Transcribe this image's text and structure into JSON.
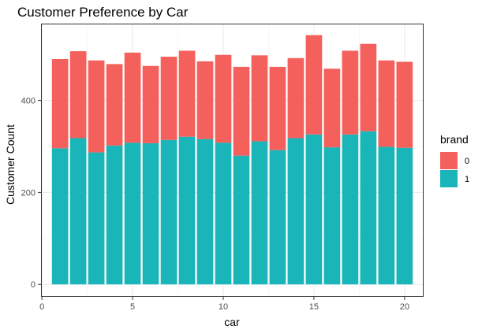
{
  "chart_data": {
    "type": "bar",
    "stacked": true,
    "title": "Customer Preference by Car",
    "xlabel": "car",
    "ylabel": "Customer Count",
    "x": [
      1,
      2,
      3,
      4,
      5,
      6,
      7,
      8,
      9,
      10,
      11,
      12,
      13,
      14,
      15,
      16,
      17,
      18,
      19,
      20
    ],
    "xlim": [
      -0.05,
      21.05
    ],
    "ylim": [
      -27,
      567
    ],
    "xticks": [
      0,
      5,
      10,
      15,
      20
    ],
    "yticks": [
      0,
      200,
      400
    ],
    "grid": true,
    "legend_title": "brand",
    "legend_position": "right",
    "series": [
      {
        "name": "1",
        "color": "#1ab5b8",
        "values": [
          296,
          318,
          287,
          302,
          308,
          307,
          314,
          321,
          316,
          308,
          280,
          311,
          292,
          318,
          326,
          298,
          326,
          333,
          299,
          297
        ]
      },
      {
        "name": "0",
        "color": "#f4605b",
        "values": [
          194,
          189,
          200,
          177,
          196,
          168,
          181,
          187,
          169,
          191,
          193,
          187,
          181,
          174,
          216,
          171,
          182,
          190,
          188,
          187
        ]
      }
    ],
    "legend_order": [
      "0",
      "1"
    ]
  }
}
